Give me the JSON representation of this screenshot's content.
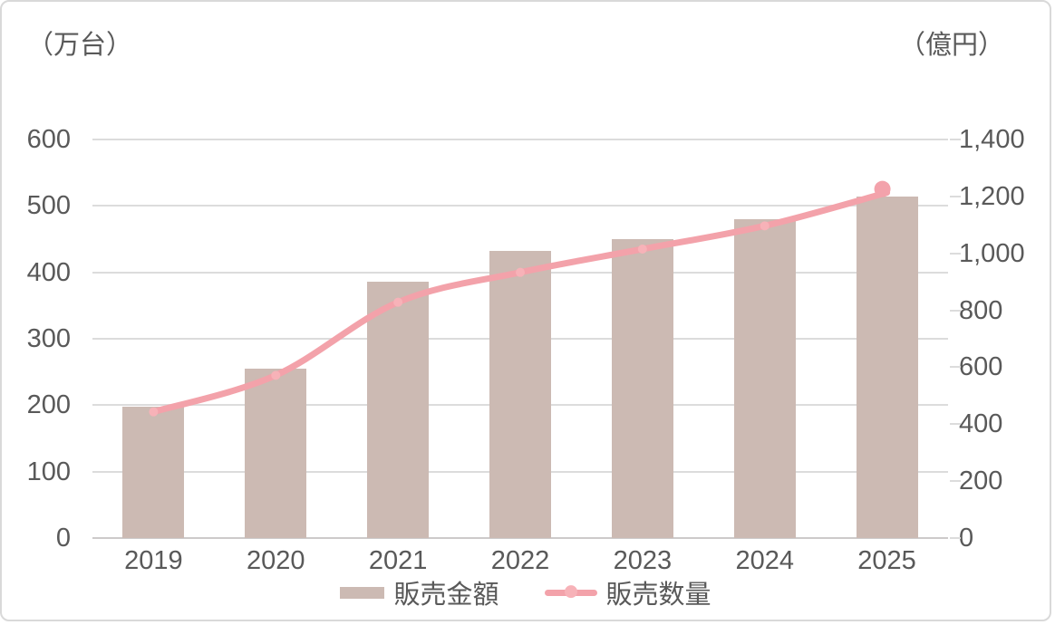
{
  "chart_data": {
    "type": "combo-bar-line",
    "categories": [
      "2019",
      "2020",
      "2021",
      "2022",
      "2023",
      "2024",
      "2025"
    ],
    "series": [
      {
        "name": "販売金額",
        "type": "bar",
        "axis": "right",
        "unit": "億円",
        "values": [
          460,
          595,
          900,
          1010,
          1050,
          1120,
          1200
        ]
      },
      {
        "name": "販売数量",
        "type": "line",
        "axis": "left",
        "unit": "万台",
        "values": [
          190,
          245,
          355,
          400,
          435,
          470,
          520
        ]
      }
    ],
    "left_axis": {
      "title": "（万台）",
      "min": 0,
      "max": 600,
      "step": 100,
      "ticks": [
        "600",
        "500",
        "400",
        "300",
        "200",
        "100",
        "0"
      ]
    },
    "right_axis": {
      "title": "（億円）",
      "min": 0,
      "max": 1400,
      "step": 200,
      "ticks": [
        "1,400",
        "1,200",
        "1,000",
        "800",
        "600",
        "400",
        "200",
        "0"
      ]
    },
    "grid": "horizontal-left-axis-only",
    "legend_position": "bottom",
    "colors": {
      "bar": "#ccbab3",
      "line": "#f3a2aa",
      "marker": "#f7b2b8",
      "end_marker": "#f3a2ab",
      "grid": "#dcdcdc",
      "axis_line": "#cdcaca",
      "text": "#595959",
      "border": "#d9d9d9"
    }
  }
}
